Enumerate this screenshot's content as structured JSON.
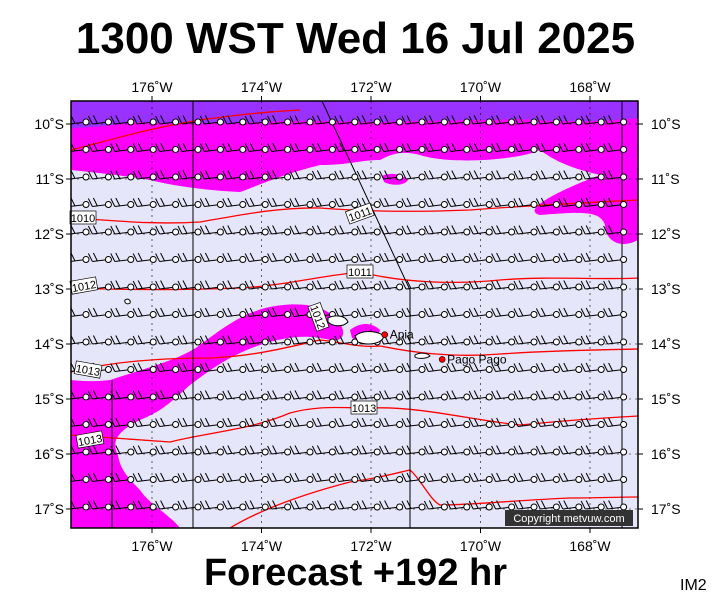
{
  "header": {
    "title": "1300 WST Wed 16 Jul 2025"
  },
  "footer": {
    "forecast": "Forecast +192 hr",
    "model_tag": "IM2"
  },
  "map": {
    "copyright": "Copyright metvuw.com",
    "lon_ticks": [
      "176˚W",
      "174˚W",
      "172˚W",
      "170˚W",
      "168˚W"
    ],
    "lon_values": [
      -176,
      -174,
      -172,
      -170,
      -168
    ],
    "lat_ticks": [
      "10˚S",
      "11˚S",
      "12˚S",
      "13˚S",
      "14˚S",
      "15˚S",
      "16˚S",
      "17˚S"
    ],
    "lat_values": [
      -10,
      -11,
      -12,
      -13,
      -14,
      -15,
      -16,
      -17
    ],
    "places": [
      {
        "name": "Apia",
        "lon": -171.75,
        "lat": -13.83
      },
      {
        "name": "Pago Pago",
        "lon": -170.7,
        "lat": -14.28
      }
    ],
    "isobar_labels": [
      "1010",
      "1011",
      "1011",
      "1012",
      "1012",
      "1013",
      "1013",
      "1013"
    ],
    "colors": {
      "light": "#e6e6fa",
      "magenta": "#ff00ff",
      "purple": "#9a32ff",
      "isobar": "#ff0000"
    }
  }
}
